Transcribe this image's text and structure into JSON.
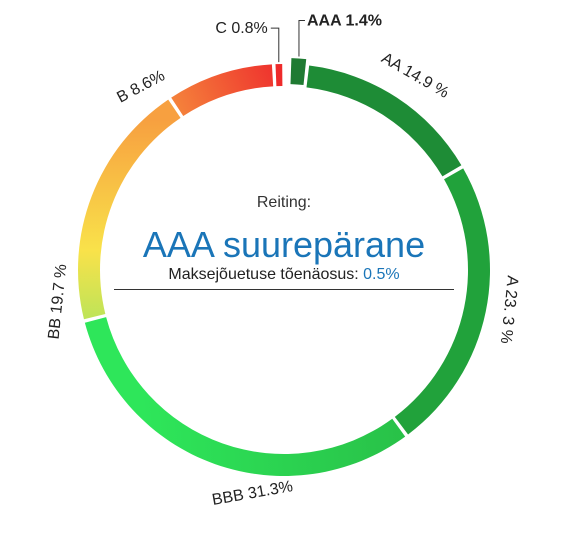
{
  "chart_data": {
    "type": "pie",
    "categories": [
      "AAA",
      "AA",
      "A",
      "BBB",
      "BB",
      "B",
      "C"
    ],
    "values": [
      1.4,
      14.9,
      23.3,
      31.3,
      19.7,
      8.6,
      0.8
    ],
    "labels": [
      "AAA 1.4%",
      "AA 14.9 %",
      "A 23. 3 %",
      "BBB  31.3%",
      "BB 19.7 %",
      "B 8.6%",
      "C 0.8%"
    ],
    "highlighted": "AAA",
    "colors": {
      "AAA": "#1f7a32",
      "AA": "#1e8c36",
      "A": "#21a23b",
      "BBB_start": "#27b743",
      "BBB_end": "#2ee65a",
      "BB_start": "#6fe66a",
      "BB_end": "#f9e24a",
      "B_start": "#f7a040",
      "B_end": "#ee2d2d",
      "C": "#ee2a2a"
    }
  },
  "center": {
    "caption": "Reiting:",
    "value": "AAA suurepärane",
    "pd_label": "Maksejõuetuse tõenäosus:",
    "pd_value": "0.5%"
  }
}
